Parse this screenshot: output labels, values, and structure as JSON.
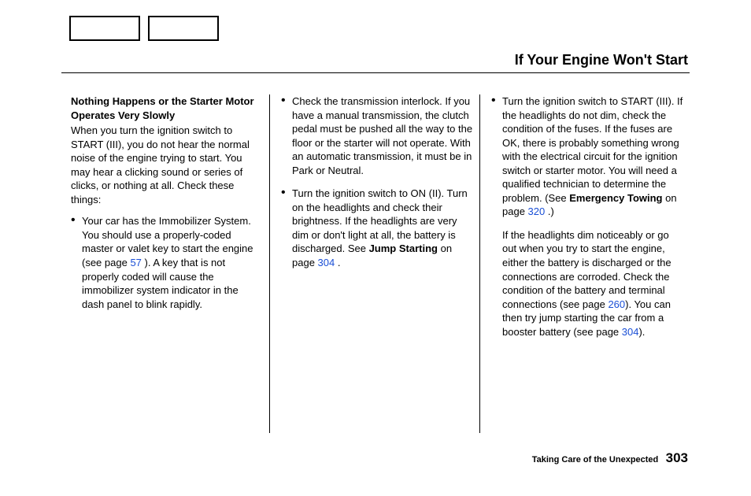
{
  "page_title": "If Your Engine Won't Start",
  "col1": {
    "subhead": "Nothing Happens or the Starter Motor Operates Very Slowly",
    "intro": "When you turn the ignition switch to START (III), you do not hear the normal noise of the engine trying to start. You may hear a clicking sound or series of clicks, or nothing at all. Check these things:",
    "b1_a": "Your car has the Immobilizer System. You should use a properly-coded master or valet key to start the engine (see page ",
    "b1_link": "57",
    "b1_b": " ). A key that is not properly coded will cause the immobilizer system indicator in the dash panel to blink rapidly."
  },
  "col2": {
    "b1": "Check the transmission interlock. If you have a manual transmission, the clutch pedal must be pushed all the way to the floor or the starter will not operate. With an automatic transmission, it must be in Park or Neutral.",
    "b2_a": "Turn the ignition switch to ON (II). Turn on the headlights and check their brightness. If the headlights are very dim or don't light at all, the battery is discharged. See ",
    "b2_bold": "Jump Starting",
    "b2_b": " on page ",
    "b2_link": "304",
    "b2_c": " ."
  },
  "col3": {
    "b1_a": "Turn the ignition switch to START (III). If the headlights do not dim, check the condition of the fuses. If the fuses are OK, there is proba­bly something wrong with the electrical circuit for the ignition switch or starter motor. You will need a qualified technician to determine the problem. (See ",
    "b1_bold": "Emergency Towing",
    "b1_b": " on page ",
    "b1_link": "320",
    "b1_c": " .)",
    "p2_a": "If the headlights dim noticeably or go out when you try to start the engine, either the battery is dis­charged or the connections are corroded. Check the condition of the battery and terminal connec­tions (see page ",
    "p2_link1": "260",
    "p2_b": "). You can then try jump starting the car from a booster battery (see page ",
    "p2_link2": "304",
    "p2_c": ")."
  },
  "footer": {
    "label": "Taking Care of the Unexpected",
    "pagenum": "303"
  }
}
